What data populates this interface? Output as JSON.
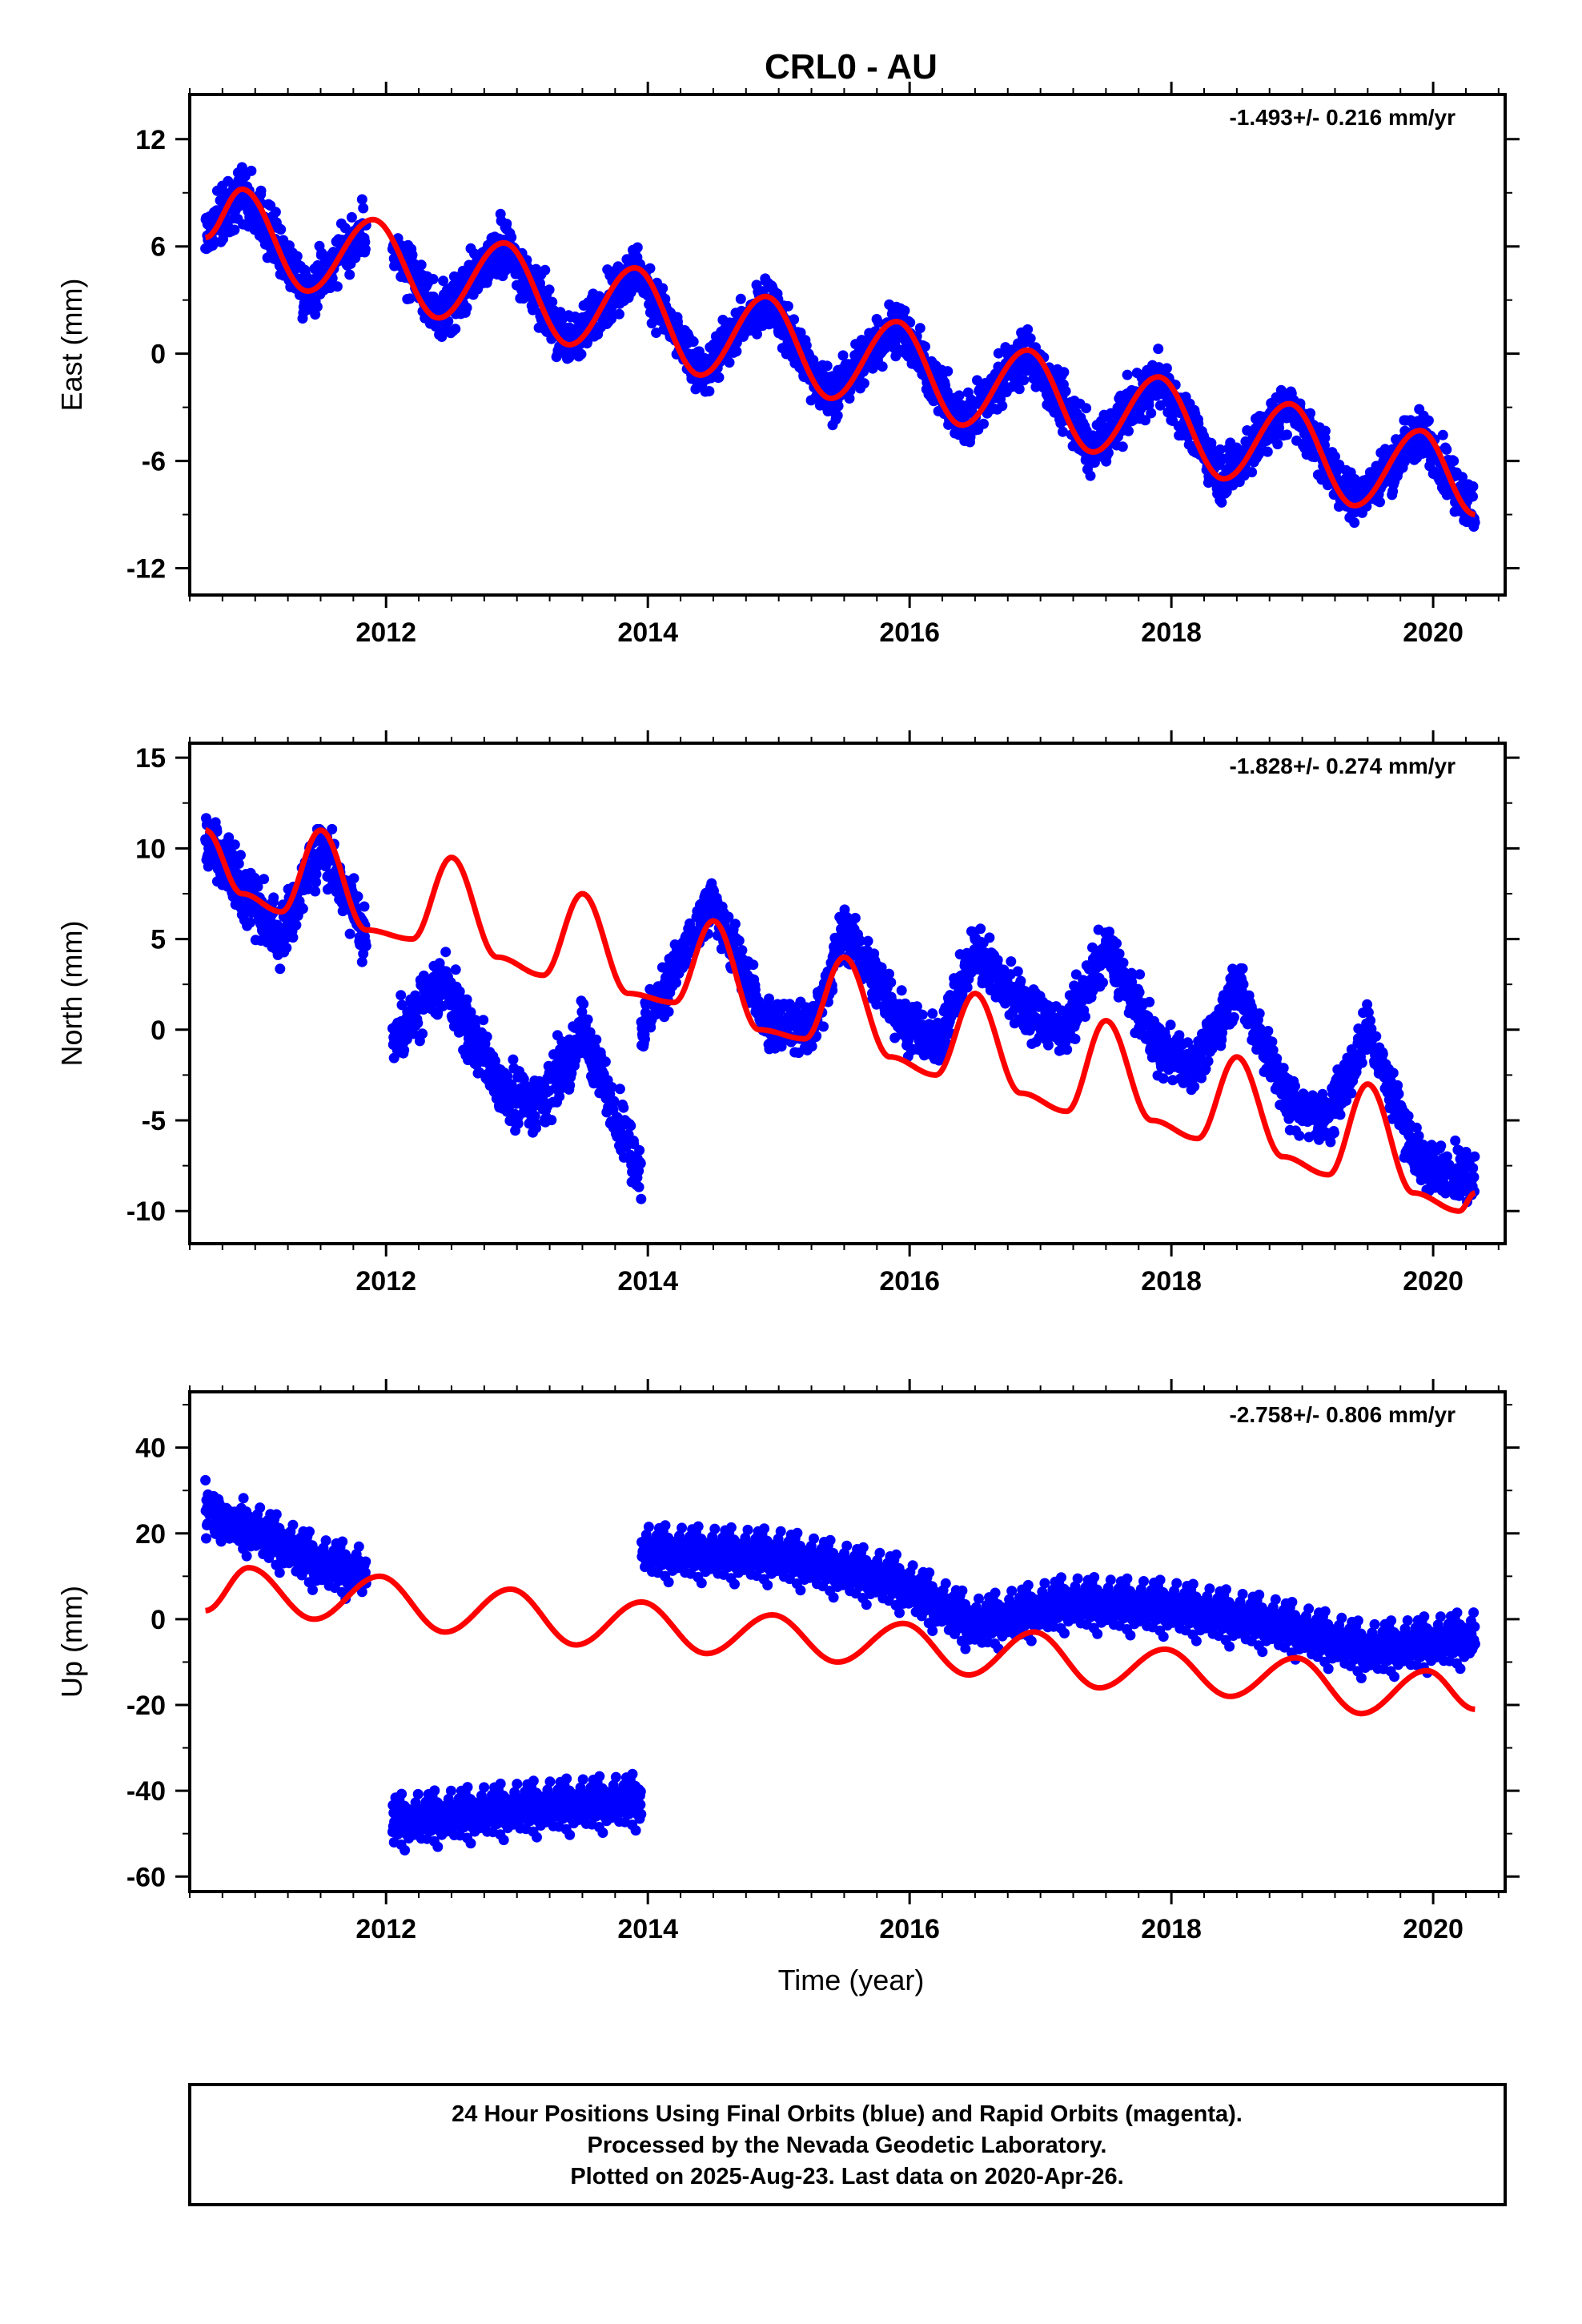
{
  "chart_data": {
    "type": "scatter",
    "title": "CRL0 - AU",
    "xlabel": "Time (year)",
    "xlim": [
      2010.5,
      2020.55
    ],
    "xticks": [
      2012,
      2014,
      2016,
      2018,
      2020
    ],
    "colors": {
      "observations": "#0000ff",
      "model": "#ff0000",
      "frame": "#000000"
    },
    "panels": [
      {
        "id": "east",
        "ylabel": "East (mm)",
        "ylim": [
          -13.5,
          14.5
        ],
        "yticks": [
          -12,
          -6,
          0,
          6,
          12
        ],
        "rate_label": "-1.493+/- 0.216 mm/yr",
        "series": [
          {
            "kind": "points",
            "segments": [
              {
                "t0": 2010.62,
                "t1": 2011.85,
                "spread": 1.3
              },
              {
                "t0": 2012.05,
                "t1": 2020.32,
                "spread": 1.3
              }
            ]
          },
          {
            "kind": "fit",
            "t0": 2010.62,
            "t1": 2020.32,
            "x": [
              2010.62,
              2010.9,
              2011.4,
              2011.9,
              2012.4,
              2012.9,
              2013.4,
              2013.9,
              2014.4,
              2014.9,
              2015.4,
              2015.9,
              2016.4,
              2016.9,
              2017.4,
              2017.9,
              2018.4,
              2018.9,
              2019.4,
              2019.9,
              2020.32
            ],
            "y": [
              6.5,
              9.2,
              3.5,
              7.5,
              2.0,
              6.2,
              0.5,
              4.8,
              -1.2,
              3.2,
              -2.5,
              1.8,
              -4.0,
              0.2,
              -5.5,
              -1.3,
              -7.0,
              -2.8,
              -8.5,
              -4.3,
              -9.0
            ]
          }
        ]
      },
      {
        "id": "north",
        "ylabel": "North (mm)",
        "ylim": [
          -11.8,
          15.8
        ],
        "yticks": [
          -10,
          -5,
          0,
          5,
          10,
          15
        ],
        "rate_label": "-1.828+/- 0.274 mm/yr",
        "series": [
          {
            "kind": "points",
            "segments": [
              {
                "t0": 2010.62,
                "t1": 2011.85,
                "spread": 1.4,
                "x": [
                  2010.62,
                  2011.0,
                  2011.2,
                  2011.5,
                  2011.85
                ],
                "y": [
                  10.5,
                  7.0,
                  5.0,
                  10.5,
                  5.0
                ]
              },
              {
                "t0": 2012.05,
                "t1": 2013.95,
                "spread": 1.4,
                "x": [
                  2012.05,
                  2012.45,
                  2012.9,
                  2013.2,
                  2013.5,
                  2013.95
                ],
                "y": [
                  -0.5,
                  2.5,
                  -3.5,
                  -4.0,
                  0.0,
                  -8.0
                ]
              },
              {
                "t0": 2013.95,
                "t1": 2020.32,
                "spread": 1.3,
                "x": [
                  2013.95,
                  2014.5,
                  2014.9,
                  2015.25,
                  2015.5,
                  2015.9,
                  2016.2,
                  2016.5,
                  2016.9,
                  2017.2,
                  2017.5,
                  2017.9,
                  2018.2,
                  2018.5,
                  2018.9,
                  2019.2,
                  2019.5,
                  2019.9,
                  2020.32
                ],
                "y": [
                  0.0,
                  7.0,
                  0.5,
                  0.0,
                  5.5,
                  1.0,
                  -1.0,
                  4.5,
                  1.0,
                  0.0,
                  4.5,
                  -1.0,
                  -2.0,
                  2.5,
                  -4.0,
                  -5.0,
                  0.0,
                  -7.5,
                  -8.0
                ]
              }
            ]
          },
          {
            "kind": "fit",
            "t0": 2010.62,
            "t1": 2020.32,
            "x": [
              2010.62,
              2010.9,
              2011.2,
              2011.5,
              2011.85,
              2012.2,
              2012.5,
              2012.85,
              2013.2,
              2013.5,
              2013.85,
              2014.2,
              2014.5,
              2014.85,
              2015.2,
              2015.5,
              2015.85,
              2016.2,
              2016.5,
              2016.85,
              2017.2,
              2017.5,
              2017.85,
              2018.2,
              2018.5,
              2018.85,
              2019.2,
              2019.5,
              2019.85,
              2020.2,
              2020.32
            ],
            "y": [
              11.0,
              7.5,
              6.5,
              11.0,
              5.5,
              5.0,
              9.5,
              4.0,
              3.0,
              7.5,
              2.0,
              1.5,
              6.0,
              0.0,
              -0.5,
              4.0,
              -1.5,
              -2.5,
              2.0,
              -3.5,
              -4.5,
              0.5,
              -5.0,
              -6.0,
              -1.5,
              -7.0,
              -8.0,
              -3.0,
              -9.0,
              -10.0,
              -9.0
            ]
          }
        ]
      },
      {
        "id": "up",
        "ylabel": "Up (mm)",
        "ylim": [
          -63.5,
          53
        ],
        "yticks": [
          -60,
          -40,
          -20,
          0,
          20,
          40
        ],
        "rate_label": "-2.758+/- 0.806 mm/yr",
        "series": [
          {
            "kind": "points",
            "segments": [
              {
                "t0": 2010.62,
                "t1": 2011.85,
                "spread": 4.5,
                "x": [
                  2010.62,
                  2011.0,
                  2011.5,
                  2011.85
                ],
                "y": [
                  25,
                  20,
                  12,
                  10
                ]
              },
              {
                "t0": 2012.05,
                "t1": 2013.95,
                "spread": 4.5,
                "x": [
                  2012.05,
                  2013.0,
                  2013.95
                ],
                "y": [
                  -48,
                  -45,
                  -43
                ]
              },
              {
                "t0": 2013.95,
                "t1": 2020.32,
                "spread": 4.5,
                "x": [
                  2013.95,
                  2015.0,
                  2015.9,
                  2016.5,
                  2017.2,
                  2018.0,
                  2018.8,
                  2019.5,
                  2020.32
                ],
                "y": [
                  15,
                  14,
                  8,
                  -2,
                  3,
                  2,
                  -2,
                  -8,
                  -5
                ]
              }
            ]
          },
          {
            "kind": "fit",
            "t0": 2010.62,
            "t1": 2020.32,
            "x": [
              2010.62,
              2010.95,
              2011.45,
              2011.95,
              2012.45,
              2012.95,
              2013.45,
              2013.95,
              2014.45,
              2014.95,
              2015.45,
              2015.95,
              2016.45,
              2016.95,
              2017.45,
              2017.95,
              2018.45,
              2018.95,
              2019.45,
              2019.95,
              2020.32
            ],
            "y": [
              2,
              12,
              0,
              10,
              -3,
              7,
              -6,
              4,
              -8,
              1,
              -10,
              -1,
              -13,
              -3,
              -16,
              -7,
              -18,
              -9,
              -22,
              -12,
              -21
            ]
          }
        ]
      }
    ]
  },
  "footer": {
    "line1": "24 Hour Positions Using Final Orbits (blue) and Rapid Orbits (magenta).",
    "line2": "Processed by the Nevada Geodetic Laboratory.",
    "line3": "Plotted on 2025-Aug-23. Last data on 2020-Apr-26."
  }
}
